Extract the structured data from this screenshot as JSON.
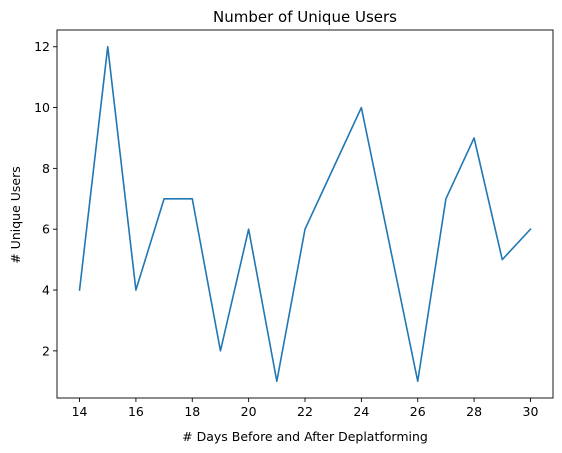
{
  "chart_data": {
    "type": "line",
    "title": "Number of Unique Users",
    "xlabel": "# Days Before and After Deplatforming",
    "ylabel": "# Unique Users",
    "x": [
      14,
      15,
      16,
      17,
      18,
      19,
      20,
      21,
      22,
      23,
      24,
      25,
      26,
      27,
      28,
      29,
      30
    ],
    "series": [
      {
        "values": [
          4,
          12,
          4,
          7,
          7,
          2,
          6,
          1,
          6,
          8,
          10,
          5.5,
          1,
          7,
          9,
          5,
          6
        ]
      }
    ],
    "xlim": [
      13.2,
      30.8
    ],
    "ylim": [
      0.45,
      12.55
    ],
    "xticks": [
      14,
      16,
      18,
      20,
      22,
      24,
      26,
      28,
      30
    ],
    "yticks": [
      2,
      4,
      6,
      8,
      10,
      12
    ],
    "grid": false,
    "line_color": "#1f77b4"
  }
}
